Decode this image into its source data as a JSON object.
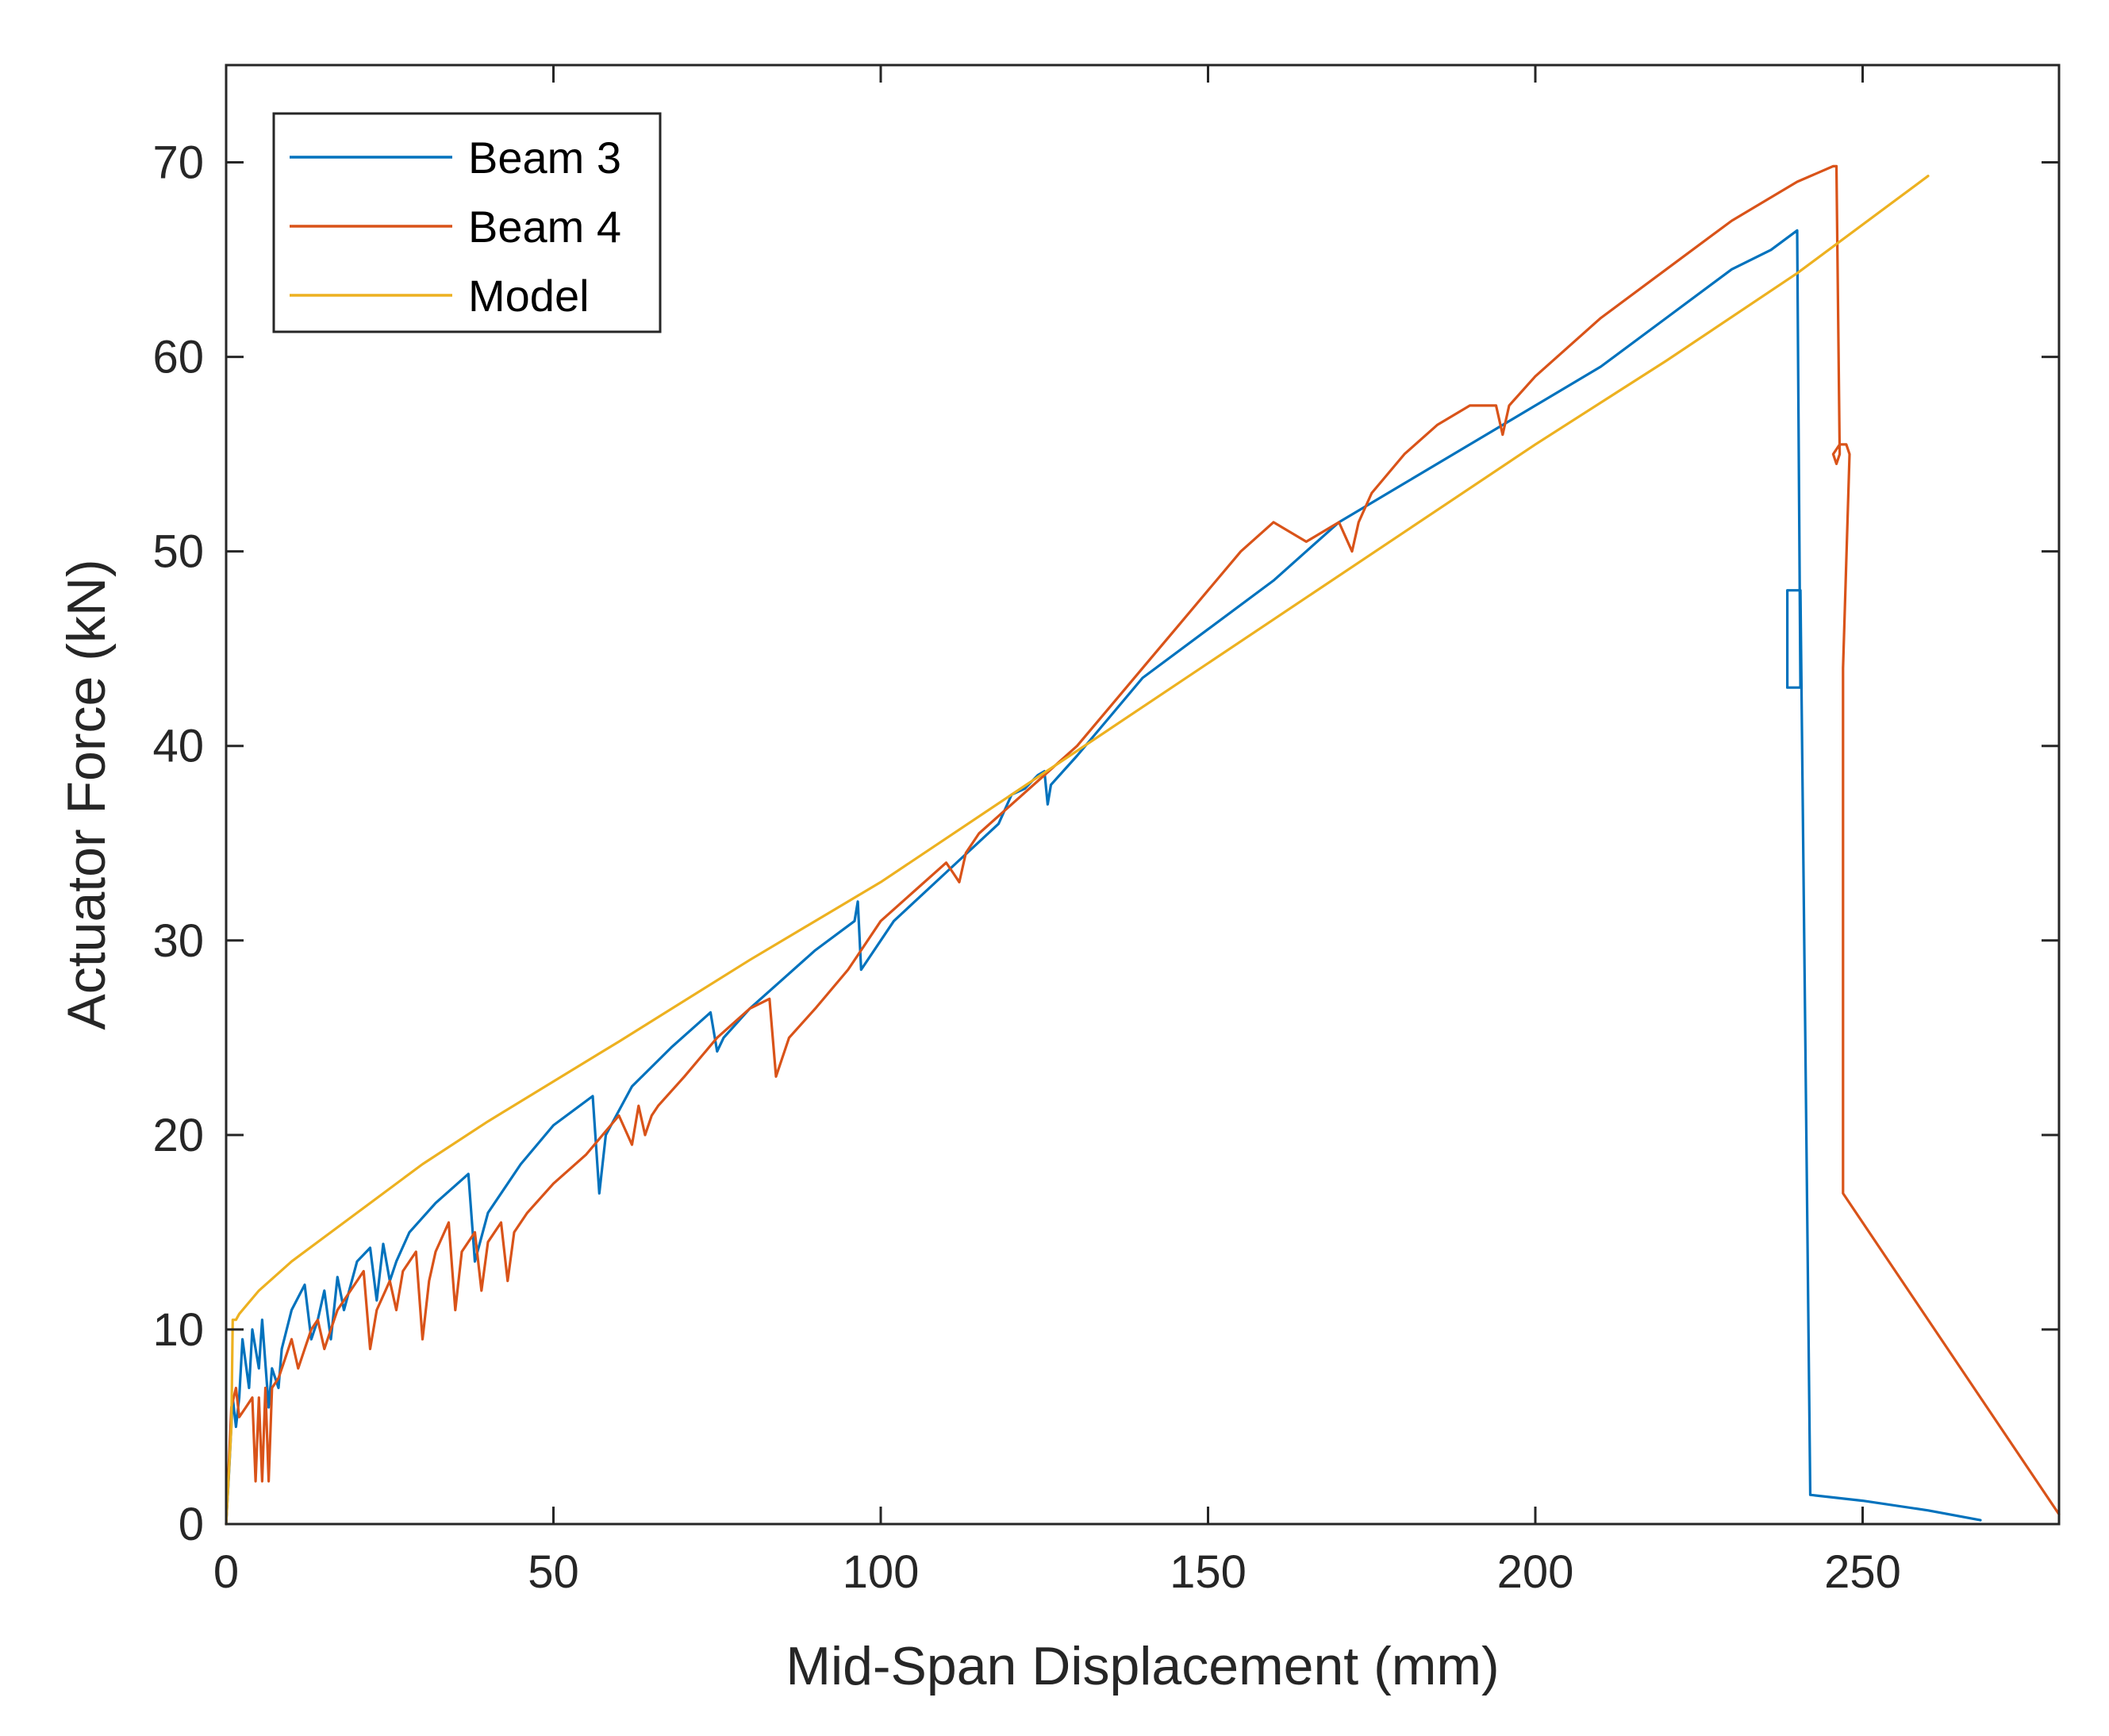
{
  "chart_data": {
    "type": "line",
    "title": "",
    "xlabel": "Mid-Span Displacement (mm)",
    "ylabel": "Actuator Force (kN)",
    "xlim": [
      0,
      280
    ],
    "ylim": [
      0,
      75
    ],
    "xticks": [
      0,
      50,
      100,
      150,
      200,
      250
    ],
    "yticks": [
      0,
      10,
      20,
      30,
      40,
      50,
      60,
      70
    ],
    "grid": false,
    "legend_position": "top-left",
    "series": [
      {
        "name": "Beam 3",
        "color": "#0072BD",
        "x": [
          0,
          0.5,
          1,
          1.5,
          2,
          2.5,
          3.5,
          4,
          5,
          5.5,
          6.5,
          7,
          8,
          8.5,
          10,
          12,
          13,
          14,
          15,
          16,
          17,
          18,
          20,
          22,
          23,
          24,
          25,
          26,
          28,
          32,
          37,
          38,
          40,
          45,
          50,
          56,
          57,
          58,
          62,
          68,
          74,
          75,
          76,
          80,
          85,
          90,
          96,
          96.5,
          97,
          102,
          110,
          118,
          120,
          122,
          124,
          125,
          125.5,
          126,
          130,
          135,
          140,
          150,
          160,
          170,
          180,
          190,
          200,
          210,
          220,
          230,
          236,
          240,
          240.5,
          238.5,
          238.5,
          240.5,
          242,
          250,
          260,
          268
        ],
        "y": [
          0,
          3,
          6.5,
          5,
          6.5,
          9.5,
          7,
          10,
          8,
          10.5,
          6,
          8,
          7,
          9,
          11,
          12.3,
          9.5,
          10.5,
          12,
          9.5,
          12.7,
          11,
          13.5,
          14.2,
          11.5,
          14.4,
          12.5,
          13.5,
          15,
          16.5,
          18,
          13.5,
          16,
          18.5,
          20.5,
          22,
          17,
          20,
          22.5,
          24.5,
          26.3,
          24.3,
          25,
          26.5,
          28,
          29.5,
          31,
          32,
          28.5,
          31,
          33.5,
          36,
          37.5,
          37.8,
          38.5,
          38.7,
          37,
          38,
          39.5,
          41.5,
          43.5,
          46,
          48.5,
          51.5,
          53.5,
          55.5,
          57.5,
          59.5,
          62,
          64.5,
          65.5,
          66.5,
          43,
          43,
          48,
          48,
          1.5,
          1.2,
          0.7,
          0.2
        ]
      },
      {
        "name": "Beam 4",
        "color": "#D95319",
        "x": [
          0,
          0.8,
          1.5,
          2,
          3,
          4,
          4.5,
          5,
          5.5,
          6,
          6.5,
          7,
          8,
          9,
          10,
          11,
          12,
          13,
          14,
          15,
          16,
          17,
          19,
          21,
          22,
          23,
          25,
          26,
          27,
          29,
          30,
          31,
          32,
          34,
          35,
          36,
          38,
          39,
          40,
          42,
          43,
          44,
          46,
          50,
          55,
          60,
          62,
          63,
          64,
          65,
          66,
          70,
          75,
          80,
          83,
          84,
          86,
          90,
          95,
          97,
          100,
          105,
          110,
          111,
          112,
          113,
          115,
          120,
          125,
          130,
          135,
          140,
          145,
          150,
          155,
          160,
          165,
          170,
          172,
          173,
          175,
          180,
          185,
          190,
          194,
          195,
          196,
          200,
          210,
          220,
          230,
          240,
          245.5,
          246,
          246.5,
          246,
          245.5,
          246.5,
          247,
          247.5,
          248,
          247,
          247,
          280
        ],
        "y": [
          0,
          6,
          7,
          5.5,
          6,
          6.5,
          2.2,
          6.5,
          2.2,
          7,
          2.2,
          7,
          7.5,
          8.5,
          9.5,
          8,
          9,
          10,
          10.5,
          9,
          10,
          11,
          12,
          13,
          9,
          11,
          12.5,
          11,
          13,
          14,
          9.5,
          12.5,
          14,
          15.5,
          11,
          14,
          15,
          12,
          14.5,
          15.5,
          12.5,
          15,
          16,
          17.5,
          19,
          21,
          19.5,
          21.5,
          20,
          21,
          21.5,
          23,
          25,
          26.5,
          27,
          23,
          25,
          26.5,
          28.5,
          29.5,
          31,
          32.5,
          34,
          33.5,
          33,
          34.5,
          35.5,
          37,
          38.5,
          40,
          42,
          44,
          46,
          48,
          50,
          51.5,
          50.5,
          51.5,
          50,
          51.5,
          53,
          55,
          56.5,
          57.5,
          57.5,
          56,
          57.5,
          59,
          62,
          64.5,
          67,
          69,
          69.8,
          69.8,
          55,
          54.5,
          55,
          55.5,
          55.5,
          55.5,
          55,
          44,
          17,
          0.5
        ]
      },
      {
        "name": "Model",
        "color": "#EDB120",
        "x": [
          0,
          0.8,
          1,
          1.5,
          2,
          5,
          10,
          20,
          30,
          40,
          60,
          80,
          100,
          120,
          140,
          160,
          180,
          200,
          220,
          240,
          260
        ],
        "y": [
          0,
          5,
          10.5,
          10.5,
          10.8,
          12,
          13.5,
          16,
          18.5,
          20.7,
          24.8,
          29,
          33,
          37.5,
          42,
          46.5,
          51,
          55.5,
          59.8,
          64.3,
          69.3
        ]
      }
    ]
  }
}
